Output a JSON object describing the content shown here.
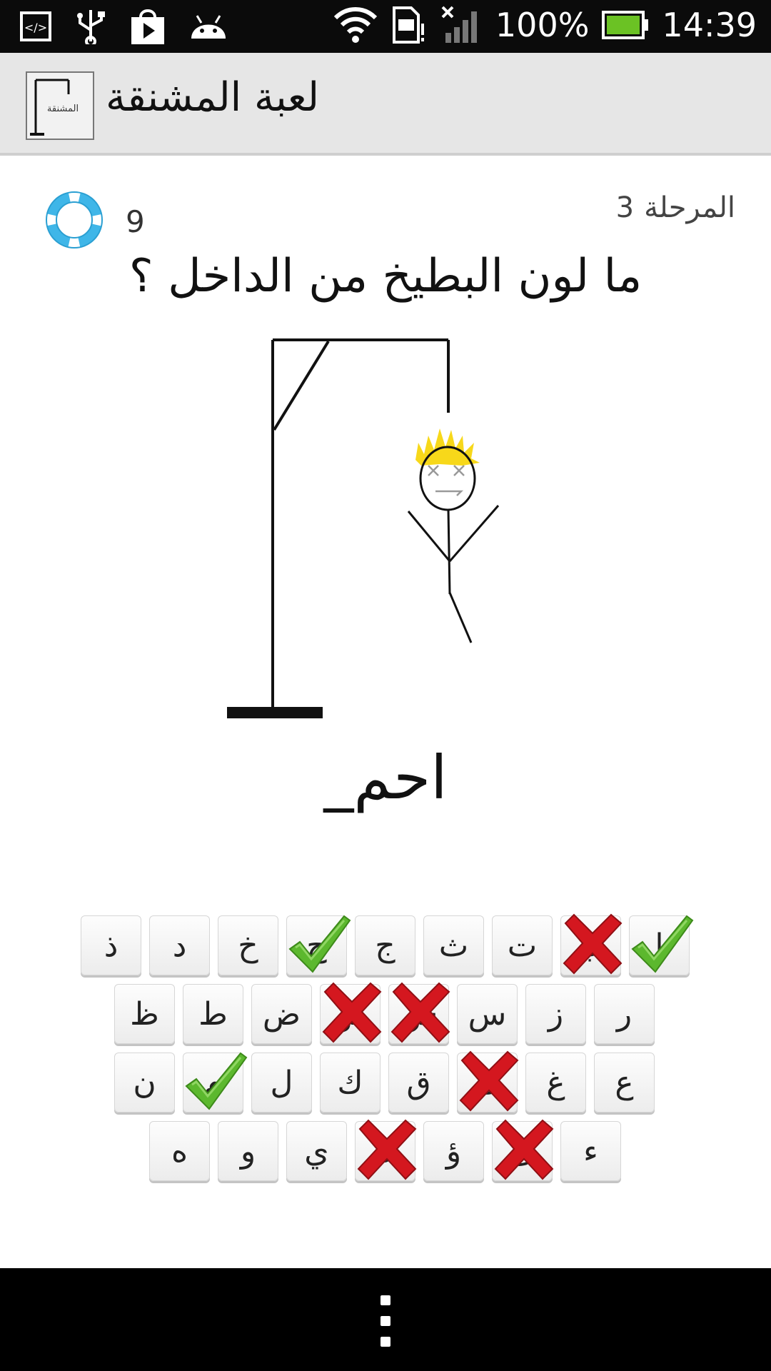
{
  "status_bar": {
    "battery_percent": "100%",
    "time": "14:39",
    "icons": [
      "code-icon",
      "usb-icon",
      "play-store-icon",
      "android-icon",
      "wifi-icon",
      "sim-icon",
      "signal-icon",
      "battery-icon"
    ]
  },
  "app_bar": {
    "title": "لعبة المشنقة",
    "icon_label": "المشنقة"
  },
  "game": {
    "stage_label": "المرحلة",
    "stage_number": "3",
    "hints_remaining": "9",
    "question": "ما لون البطيخ من الداخل ؟",
    "word_display": "احم_",
    "wrong_guesses": 6
  },
  "keyboard": {
    "rows": [
      [
        {
          "letter": "ا",
          "state": "correct"
        },
        {
          "letter": "ب",
          "state": "wrong"
        },
        {
          "letter": "ت",
          "state": "none"
        },
        {
          "letter": "ث",
          "state": "none"
        },
        {
          "letter": "ج",
          "state": "none"
        },
        {
          "letter": "ح",
          "state": "correct"
        },
        {
          "letter": "خ",
          "state": "none"
        },
        {
          "letter": "د",
          "state": "none"
        },
        {
          "letter": "ذ",
          "state": "none"
        }
      ],
      [
        {
          "letter": "ر",
          "state": "none"
        },
        {
          "letter": "ز",
          "state": "none"
        },
        {
          "letter": "س",
          "state": "none"
        },
        {
          "letter": "ش",
          "state": "wrong"
        },
        {
          "letter": "ص",
          "state": "wrong"
        },
        {
          "letter": "ض",
          "state": "none"
        },
        {
          "letter": "ط",
          "state": "none"
        },
        {
          "letter": "ظ",
          "state": "none"
        }
      ],
      [
        {
          "letter": "ع",
          "state": "none"
        },
        {
          "letter": "غ",
          "state": "none"
        },
        {
          "letter": "ف",
          "state": "wrong"
        },
        {
          "letter": "ق",
          "state": "none"
        },
        {
          "letter": "ك",
          "state": "none"
        },
        {
          "letter": "ل",
          "state": "none"
        },
        {
          "letter": "م",
          "state": "correct"
        },
        {
          "letter": "ن",
          "state": "none"
        }
      ],
      [
        {
          "letter": "ء",
          "state": "none"
        },
        {
          "letter": "ئ",
          "state": "wrong"
        },
        {
          "letter": "ؤ",
          "state": "none"
        },
        {
          "letter": "ة",
          "state": "wrong"
        },
        {
          "letter": "ي",
          "state": "none"
        },
        {
          "letter": "و",
          "state": "none"
        },
        {
          "letter": "ه",
          "state": "none"
        }
      ]
    ]
  },
  "colors": {
    "correct": "#5cb82e",
    "wrong": "#d4171f",
    "hair": "#f7d81a",
    "lifebuoy": "#3fb6e8"
  }
}
